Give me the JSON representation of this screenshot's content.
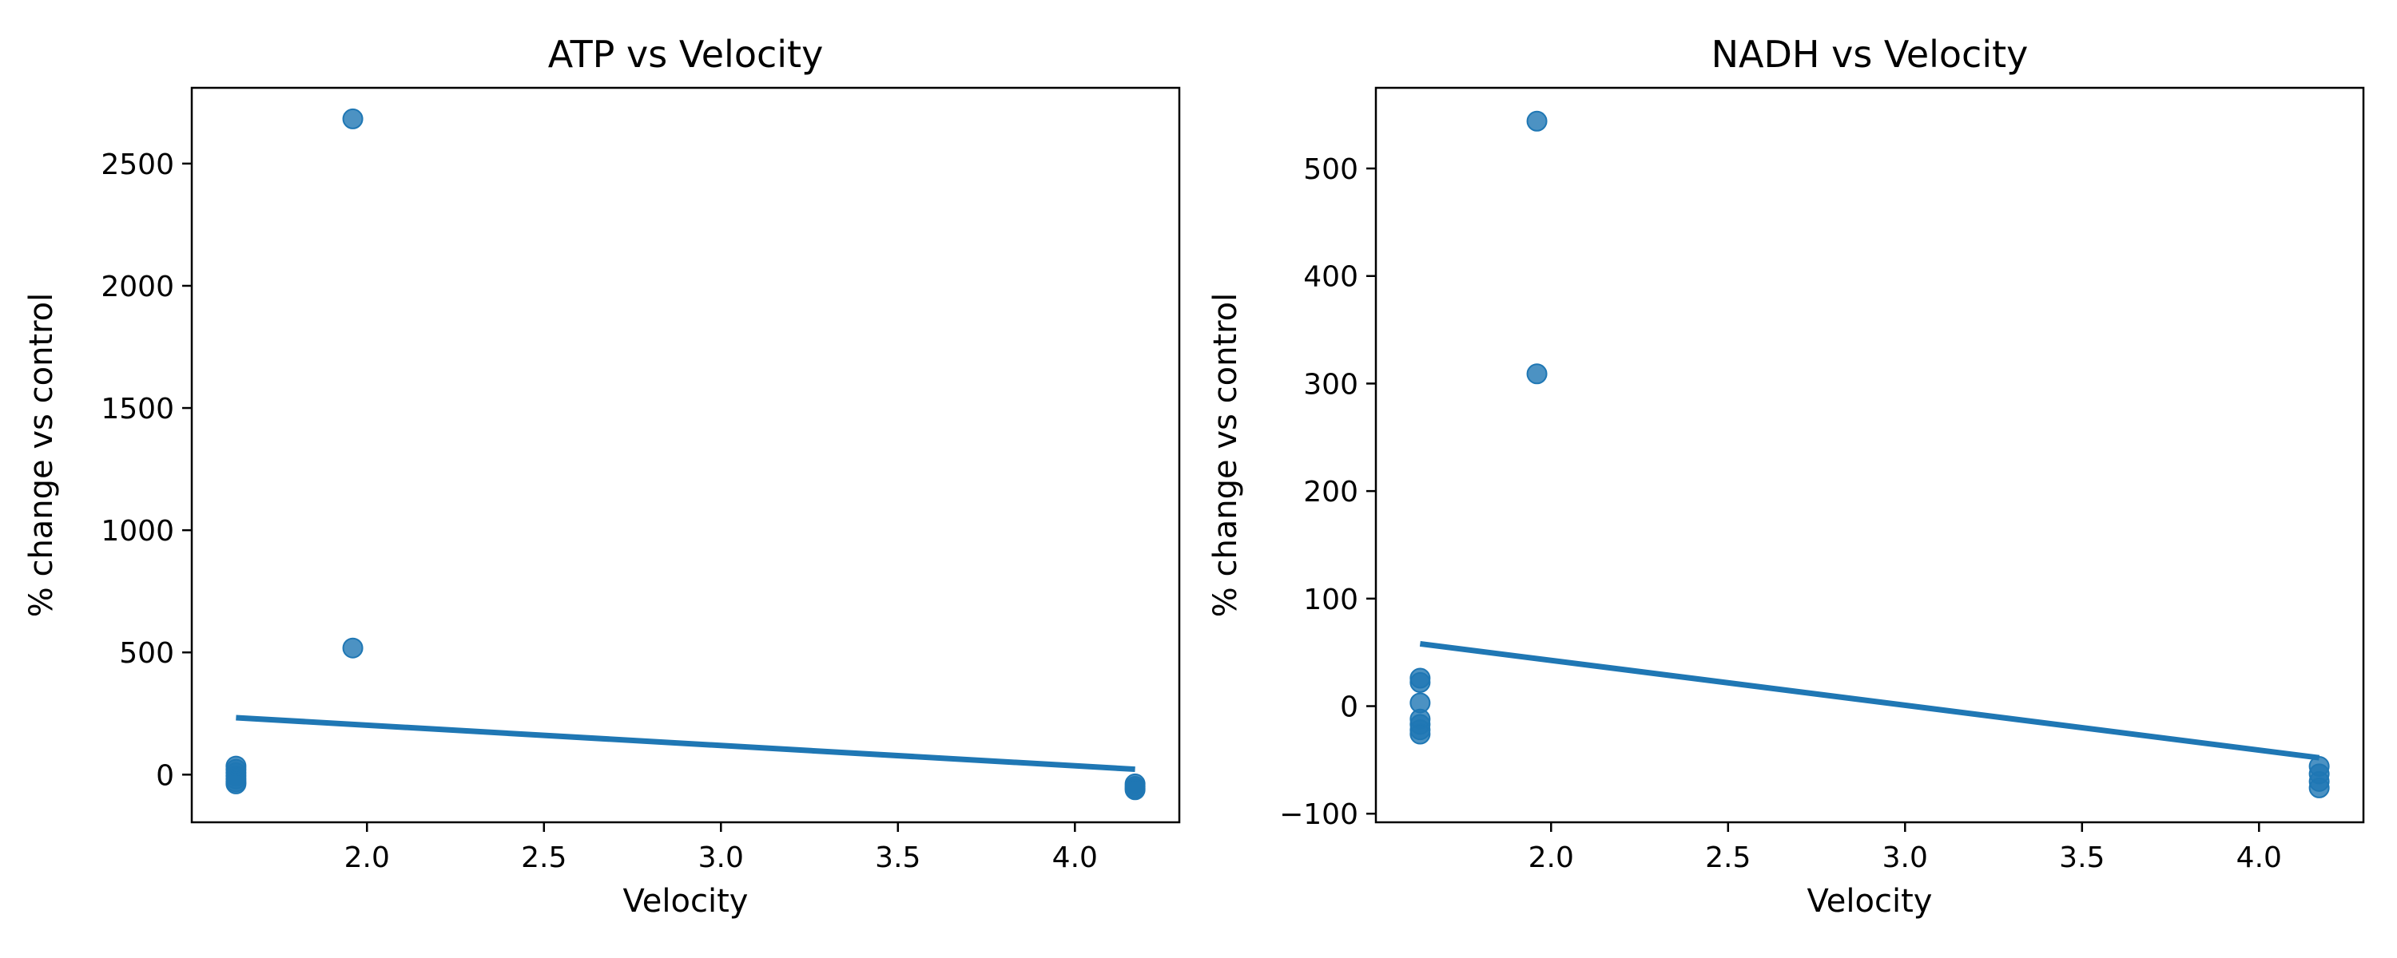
{
  "colors": {
    "series": "#1f77b4",
    "axes": "#000000",
    "background": "#ffffff"
  },
  "chart_data": [
    {
      "type": "scatter",
      "title": "ATP vs Velocity",
      "xlabel": "Velocity",
      "ylabel": "% change vs control",
      "xlim": [
        1.505,
        4.295
      ],
      "ylim": [
        -195,
        2810
      ],
      "xticks": [
        2.0,
        2.5,
        3.0,
        3.5,
        4.0
      ],
      "yticks": [
        0,
        500,
        1000,
        1500,
        2000,
        2500
      ],
      "grid": false,
      "points": [
        {
          "x": 1.63,
          "y": 35
        },
        {
          "x": 1.63,
          "y": 22
        },
        {
          "x": 1.63,
          "y": 8
        },
        {
          "x": 1.63,
          "y": -5
        },
        {
          "x": 1.63,
          "y": -18
        },
        {
          "x": 1.63,
          "y": -30
        },
        {
          "x": 1.63,
          "y": -38
        },
        {
          "x": 1.96,
          "y": 2683
        },
        {
          "x": 1.96,
          "y": 518
        },
        {
          "x": 4.17,
          "y": -38
        },
        {
          "x": 4.17,
          "y": -48
        },
        {
          "x": 4.17,
          "y": -56
        },
        {
          "x": 4.17,
          "y": -62
        }
      ],
      "fit_line": {
        "x": [
          1.63,
          4.17
        ],
        "y": [
          233,
          22
        ]
      }
    },
    {
      "type": "scatter",
      "title": "NADH vs Velocity",
      "xlabel": "Velocity",
      "ylabel": "% change vs control",
      "xlim": [
        1.505,
        4.295
      ],
      "ylim": [
        -108,
        575
      ],
      "xticks": [
        2.0,
        2.5,
        3.0,
        3.5,
        4.0
      ],
      "yticks": [
        -100,
        0,
        100,
        200,
        300,
        400,
        500
      ],
      "grid": false,
      "points": [
        {
          "x": 1.63,
          "y": 26
        },
        {
          "x": 1.63,
          "y": 22
        },
        {
          "x": 1.63,
          "y": 3
        },
        {
          "x": 1.63,
          "y": -12
        },
        {
          "x": 1.63,
          "y": -17
        },
        {
          "x": 1.63,
          "y": -22
        },
        {
          "x": 1.63,
          "y": -26
        },
        {
          "x": 1.96,
          "y": 544
        },
        {
          "x": 1.96,
          "y": 309
        },
        {
          "x": 4.17,
          "y": -56
        },
        {
          "x": 4.17,
          "y": -63
        },
        {
          "x": 4.17,
          "y": -70
        },
        {
          "x": 4.17,
          "y": -76
        }
      ],
      "fit_line": {
        "x": [
          1.63,
          4.17
        ],
        "y": [
          58,
          -48
        ]
      }
    }
  ]
}
